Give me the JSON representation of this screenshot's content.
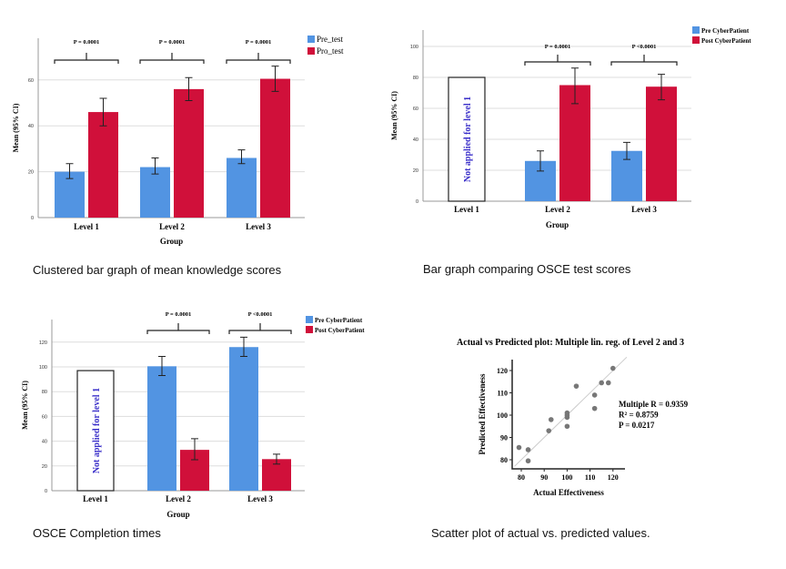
{
  "captions": [
    "Clustered bar graph of mean knowledge scores",
    "Bar graph comparing OSCE test scores",
    "OSCE Completion times",
    "Scatter plot of actual vs. predicted values."
  ],
  "colors": {
    "pre": "#5294e2",
    "post": "#d0103a",
    "na_text": "#3a2fc9"
  },
  "chart_data": [
    {
      "type": "bar",
      "xlabel": "Group",
      "ylabel": "Mean (95% CI)",
      "categories": [
        "Level 1",
        "Level 2",
        "Level 3"
      ],
      "yticks": [
        0,
        20,
        40,
        60
      ],
      "grid": true,
      "legend": "top-right",
      "series": [
        {
          "name": "Pre_test",
          "values": [
            20,
            22,
            26
          ],
          "ci_low": [
            17,
            19,
            23.5
          ],
          "ci_high": [
            23.5,
            26,
            29.5
          ]
        },
        {
          "name": "Pro_test",
          "values": [
            46,
            56,
            60.5
          ],
          "ci_low": [
            40,
            51,
            55
          ],
          "ci_high": [
            52,
            61,
            66
          ]
        }
      ],
      "annotations": [
        "P = 0.0001",
        "P = 0.0001",
        "P = 0.0001"
      ]
    },
    {
      "type": "bar",
      "xlabel": "Group",
      "ylabel": "Mean (95% CI)",
      "categories": [
        "Level 1",
        "Level 2",
        "Level 3"
      ],
      "yticks": [
        0,
        20,
        40,
        60,
        80,
        100
      ],
      "grid": true,
      "legend": "top-right",
      "not_applied": {
        "label": "Not applied for level 1",
        "value": 80
      },
      "series": [
        {
          "name": "Pre CyberPatient",
          "values": [
            null,
            26,
            32.5
          ],
          "ci_low": [
            null,
            19.5,
            27
          ],
          "ci_high": [
            null,
            32.5,
            38
          ]
        },
        {
          "name": "Post CyberPatient",
          "values": [
            null,
            75,
            74
          ],
          "ci_low": [
            null,
            63,
            65.5
          ],
          "ci_high": [
            null,
            86,
            82
          ]
        }
      ],
      "annotations": [
        null,
        "P = 0.0001",
        "P <0.0001"
      ]
    },
    {
      "type": "bar",
      "xlabel": "Group",
      "ylabel": "Mean (95% CI)",
      "categories": [
        "Level 1",
        "Level 2",
        "Level 3"
      ],
      "yticks": [
        0,
        20,
        40,
        60,
        80,
        100,
        120
      ],
      "grid": true,
      "legend": "top-right",
      "not_applied": {
        "label": "Not applied for level 1",
        "value": 97
      },
      "series": [
        {
          "name": "Pre CyberPatient",
          "values": [
            null,
            100.5,
            116
          ],
          "ci_low": [
            null,
            93,
            108.5
          ],
          "ci_high": [
            null,
            108.5,
            124
          ]
        },
        {
          "name": "Post CyberPatient",
          "values": [
            null,
            33,
            25.5
          ],
          "ci_low": [
            null,
            25,
            21.5
          ],
          "ci_high": [
            null,
            42,
            29.5
          ]
        }
      ],
      "annotations": [
        null,
        "P = 0.0001",
        "P <0.0001"
      ]
    },
    {
      "type": "scatter",
      "title": "Actual vs Predicted plot: Multiple lin. reg. of Level 2 and 3",
      "xlabel": "Actual Effectiveness",
      "ylabel": "Predicted Effectiveness",
      "xticks": [
        80,
        90,
        100,
        110,
        120
      ],
      "yticks": [
        80,
        90,
        100,
        110,
        120
      ],
      "points": [
        [
          79,
          85.5
        ],
        [
          83,
          84.5
        ],
        [
          83,
          79.5
        ],
        [
          92,
          93
        ],
        [
          93,
          98
        ],
        [
          100,
          95
        ],
        [
          100,
          99
        ],
        [
          100,
          100
        ],
        [
          100,
          101
        ],
        [
          104,
          113
        ],
        [
          112,
          109
        ],
        [
          112,
          103
        ],
        [
          115,
          114.5
        ],
        [
          118,
          114.5
        ],
        [
          120,
          121
        ]
      ],
      "fit_line": [
        [
          77,
          77
        ],
        [
          126,
          126
        ]
      ],
      "stats": [
        "Multiple R = 0.9359",
        "R² = 0.8759",
        "P = 0.0217"
      ]
    }
  ]
}
